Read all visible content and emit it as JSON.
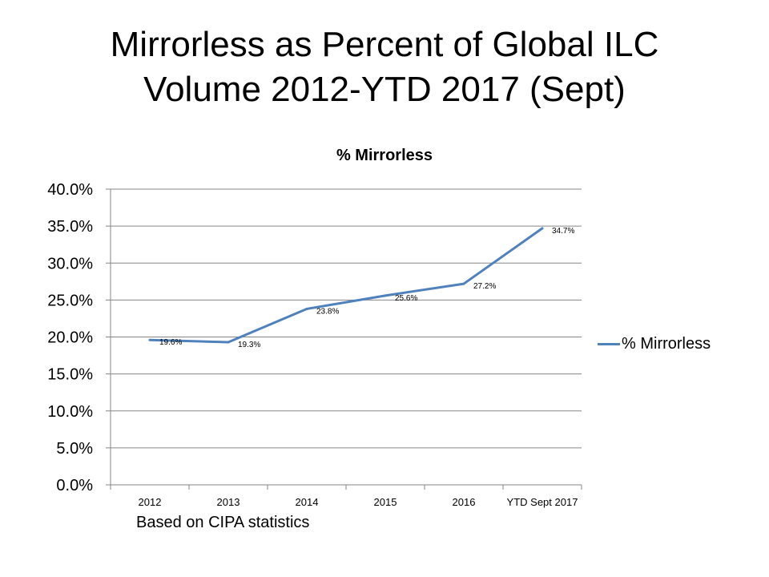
{
  "slide": {
    "title_line1": "Mirrorless as Percent of Global ILC",
    "title_line2": "Volume 2012-YTD 2017 (Sept)",
    "footnote": "Based on CIPA statistics"
  },
  "colors": {
    "series": "#4f81bd",
    "axis": "#868686",
    "grid": "#868686"
  },
  "chart_data": {
    "type": "line",
    "title": "% Mirrorless",
    "xlabel": "",
    "ylabel": "",
    "categories": [
      "2012",
      "2013",
      "2014",
      "2015",
      "2016",
      "YTD Sept 2017"
    ],
    "series": [
      {
        "name": "% Mirrorless",
        "values": [
          19.6,
          19.3,
          23.8,
          25.6,
          27.2,
          34.7
        ],
        "labels": [
          "19.6%",
          "19.3%",
          "23.8%",
          "25.6%",
          "27.2%",
          "34.7%"
        ]
      }
    ],
    "ylim": [
      0,
      40
    ],
    "yticks": [
      0,
      5,
      10,
      15,
      20,
      25,
      30,
      35,
      40
    ],
    "ytick_labels": [
      "0.0%",
      "5.0%",
      "10.0%",
      "15.0%",
      "20.0%",
      "25.0%",
      "30.0%",
      "35.0%",
      "40.0%"
    ],
    "grid": true,
    "legend": "right"
  }
}
